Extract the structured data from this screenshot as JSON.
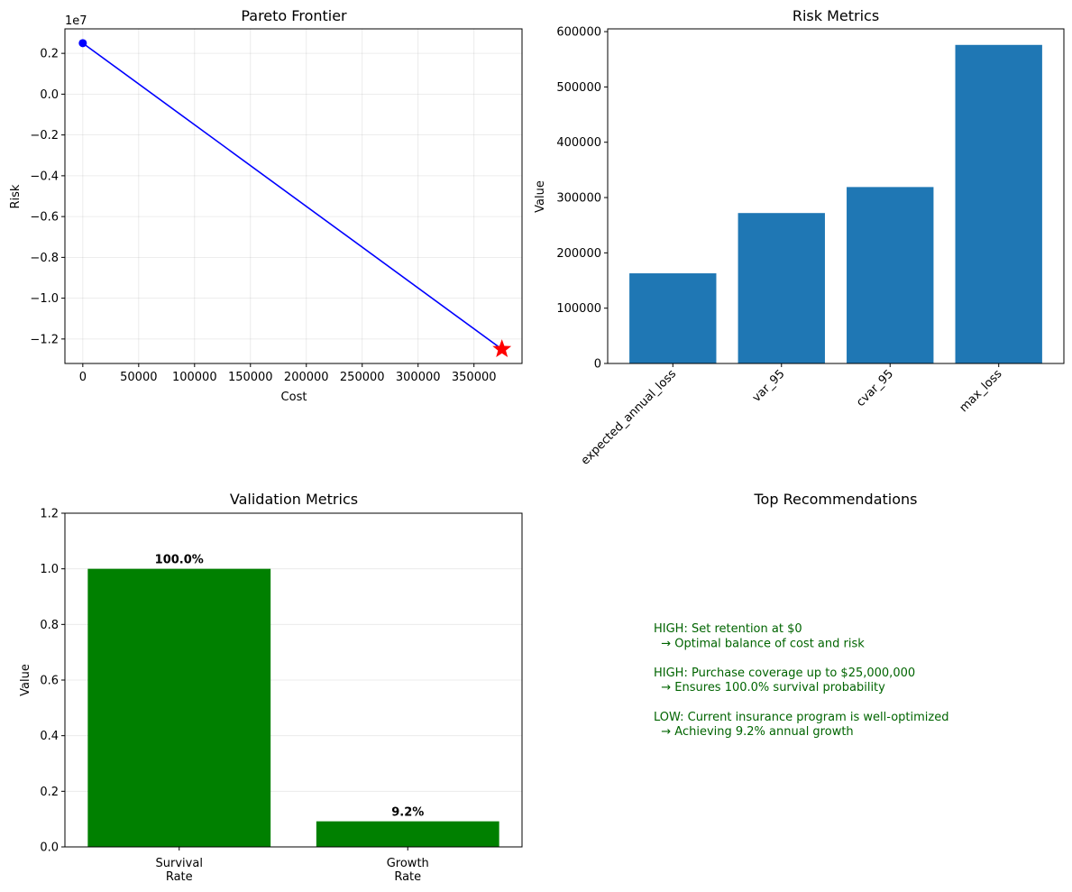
{
  "chart_data": [
    {
      "type": "line",
      "title": "Pareto Frontier",
      "xlabel": "Cost",
      "ylabel": "Risk",
      "offset_label": "1e7",
      "xlim": [
        -16000,
        393000
      ],
      "ylim": [
        -13200000,
        3200000
      ],
      "xticks": [
        0,
        50000,
        100000,
        150000,
        200000,
        250000,
        300000,
        350000
      ],
      "xtick_labels": [
        "0",
        "50000",
        "100000",
        "150000",
        "200000",
        "250000",
        "300000",
        "350000"
      ],
      "yticks": [
        2000000,
        0,
        -2000000,
        -4000000,
        -6000000,
        -8000000,
        -10000000,
        -12000000
      ],
      "ytick_labels": [
        "0.2",
        "0.0",
        "−0.2",
        "−0.4",
        "−0.6",
        "−0.8",
        "−1.0",
        "−1.2"
      ],
      "grid": true,
      "line_color": "#0000ff",
      "series": [
        {
          "x": [
            0,
            375000
          ],
          "y": [
            2500000,
            -12500000
          ],
          "color": "#0000ff"
        }
      ],
      "start_point": {
        "x": 0,
        "y": 2500000,
        "color": "#0000ff"
      },
      "optimal_point": {
        "x": 375000,
        "y": -12500000,
        "color": "#ff0000",
        "marker": "star"
      }
    },
    {
      "type": "bar",
      "title": "Risk Metrics",
      "xlabel": "",
      "ylabel": "Value",
      "categories": [
        "expected_annual_loss",
        "var_95",
        "cvar_95",
        "max_loss"
      ],
      "values": [
        163000,
        272000,
        319000,
        576000
      ],
      "ylim": [
        0,
        605000
      ],
      "yticks": [
        0,
        100000,
        200000,
        300000,
        400000,
        500000,
        600000
      ],
      "ytick_labels": [
        "0",
        "100000",
        "200000",
        "300000",
        "400000",
        "500000",
        "600000"
      ],
      "bar_color": "#1f77b4",
      "grid": false
    },
    {
      "type": "bar",
      "title": "Validation Metrics",
      "xlabel": "",
      "ylabel": "Value",
      "categories": [
        [
          "Survival",
          "Rate"
        ],
        [
          "Growth",
          "Rate"
        ]
      ],
      "values": [
        1.0,
        0.092
      ],
      "data_labels": [
        "100.0%",
        "9.2%"
      ],
      "ylim": [
        0,
        1.2
      ],
      "yticks": [
        0,
        0.2,
        0.4,
        0.6,
        0.8,
        1.0,
        1.2
      ],
      "ytick_labels": [
        "0.0",
        "0.2",
        "0.4",
        "0.6",
        "0.8",
        "1.0",
        "1.2"
      ],
      "bar_color": "#008000",
      "grid": true
    }
  ],
  "recommendations": {
    "title": "Top Recommendations",
    "color": "#006400",
    "lines": [
      "HIGH: Set retention at $0",
      "  → Optimal balance of cost and risk",
      "",
      "HIGH: Purchase coverage up to $25,000,000",
      "  → Ensures 100.0% survival probability",
      "",
      "LOW: Current insurance program is well-optimized",
      "  → Achieving 9.2% annual growth"
    ]
  }
}
